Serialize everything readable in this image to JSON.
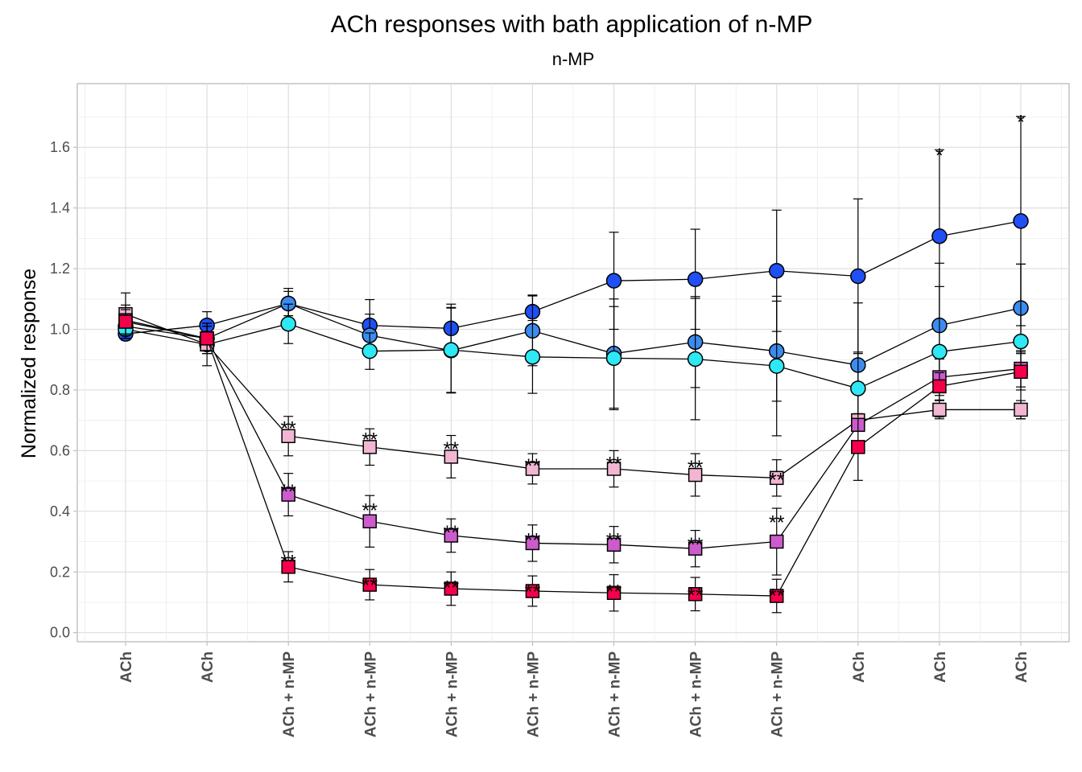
{
  "chart_data": {
    "type": "line",
    "title": "ACh responses with bath application of n-MP",
    "subtitle": "n-MP",
    "xlabel": "",
    "ylabel": "Normalized response",
    "categories": [
      "ACh",
      "ACh",
      "ACh + n-MP",
      "ACh + n-MP",
      "ACh + n-MP",
      "ACh + n-MP",
      "ACh + n-MP",
      "ACh + n-MP",
      "ACh + n-MP",
      "ACh",
      "ACh",
      "ACh"
    ],
    "ylim": [
      -0.03,
      1.81
    ],
    "yticks": [
      "0.0",
      "0.2",
      "0.4",
      "0.6",
      "0.8",
      "1.0",
      "1.2",
      "1.4",
      "1.6"
    ],
    "grid": true,
    "series": [
      {
        "marker": "circle",
        "color": "#1f4ff5",
        "values": [
          0.985,
          1.013,
          1.085,
          1.013,
          1.003,
          1.058,
          1.16,
          1.165,
          1.193,
          1.175,
          1.307,
          1.357
        ],
        "err": [
          0.02,
          0.045,
          0.05,
          0.085,
          0.08,
          0.055,
          0.16,
          0.165,
          0.2,
          0.255,
          0.285,
          0.345
        ]
      },
      {
        "marker": "circle",
        "color": "#3c8cf0",
        "values": [
          1.01,
          0.97,
          1.085,
          0.98,
          0.93,
          0.995,
          0.92,
          0.958,
          0.928,
          0.882,
          1.013,
          1.07
        ],
        "err": [
          0.04,
          0.05,
          0.04,
          0.07,
          0.14,
          0.115,
          0.18,
          0.15,
          0.165,
          0.205,
          0.205,
          0.145
        ]
      },
      {
        "marker": "circle",
        "color": "#2ee8f5",
        "values": [
          1.0,
          0.95,
          1.018,
          0.928,
          0.932,
          0.909,
          0.905,
          0.902,
          0.879,
          0.805,
          0.926,
          0.96
        ],
        "err": [
          0.03,
          0.07,
          0.065,
          0.06,
          0.14,
          0.12,
          0.17,
          0.2,
          0.23,
          0.12,
          0.215,
          0.255
        ]
      },
      {
        "marker": "square",
        "color": "#f2b6d2",
        "values": [
          1.05,
          0.95,
          0.648,
          0.612,
          0.58,
          0.54,
          0.54,
          0.52,
          0.51,
          0.7,
          0.735,
          0.735
        ],
        "err": [
          0.07,
          0.03,
          0.065,
          0.06,
          0.07,
          0.05,
          0.06,
          0.07,
          0.06,
          0.02,
          0.03,
          0.03
        ]
      },
      {
        "marker": "square",
        "color": "#cc5ccc",
        "values": [
          1.03,
          0.97,
          0.455,
          0.367,
          0.32,
          0.295,
          0.29,
          0.277,
          0.3,
          0.685,
          0.842,
          0.87
        ],
        "err": [
          0.05,
          0.04,
          0.07,
          0.085,
          0.055,
          0.06,
          0.06,
          0.06,
          0.11,
          0.02,
          0.06,
          0.06
        ]
      },
      {
        "marker": "square",
        "color": "#f5004b",
        "values": [
          1.025,
          0.97,
          0.217,
          0.158,
          0.145,
          0.137,
          0.131,
          0.127,
          0.121,
          0.612,
          0.812,
          0.86
        ],
        "err": [
          0.04,
          0.04,
          0.05,
          0.05,
          0.055,
          0.05,
          0.06,
          0.055,
          0.055,
          0.11,
          0.045,
          0.06
        ]
      }
    ],
    "annotations": [
      {
        "x": 3,
        "y": 0.695,
        "text": "**"
      },
      {
        "x": 3,
        "y": 0.487,
        "text": "**"
      },
      {
        "x": 3,
        "y": 0.255,
        "text": "**"
      },
      {
        "x": 4,
        "y": 0.658,
        "text": "**"
      },
      {
        "x": 4,
        "y": 0.425,
        "text": "**"
      },
      {
        "x": 4,
        "y": 0.178,
        "text": "**"
      },
      {
        "x": 5,
        "y": 0.627,
        "text": "**"
      },
      {
        "x": 5,
        "y": 0.352,
        "text": "**"
      },
      {
        "x": 5,
        "y": 0.17,
        "text": "**"
      },
      {
        "x": 6,
        "y": 0.572,
        "text": "**"
      },
      {
        "x": 6,
        "y": 0.327,
        "text": "**"
      },
      {
        "x": 6,
        "y": 0.157,
        "text": "**"
      },
      {
        "x": 7,
        "y": 0.578,
        "text": "**"
      },
      {
        "x": 7,
        "y": 0.327,
        "text": "**"
      },
      {
        "x": 7,
        "y": 0.157,
        "text": "**"
      },
      {
        "x": 8,
        "y": 0.567,
        "text": "**"
      },
      {
        "x": 8,
        "y": 0.312,
        "text": "**"
      },
      {
        "x": 8,
        "y": 0.145,
        "text": "**"
      },
      {
        "x": 9,
        "y": 0.525,
        "text": "**"
      },
      {
        "x": 9,
        "y": 0.385,
        "text": "**"
      },
      {
        "x": 9,
        "y": 0.143,
        "text": "**"
      },
      {
        "x": 11,
        "y": 1.595,
        "text": "*"
      },
      {
        "x": 12,
        "y": 1.705,
        "text": "*"
      }
    ]
  }
}
